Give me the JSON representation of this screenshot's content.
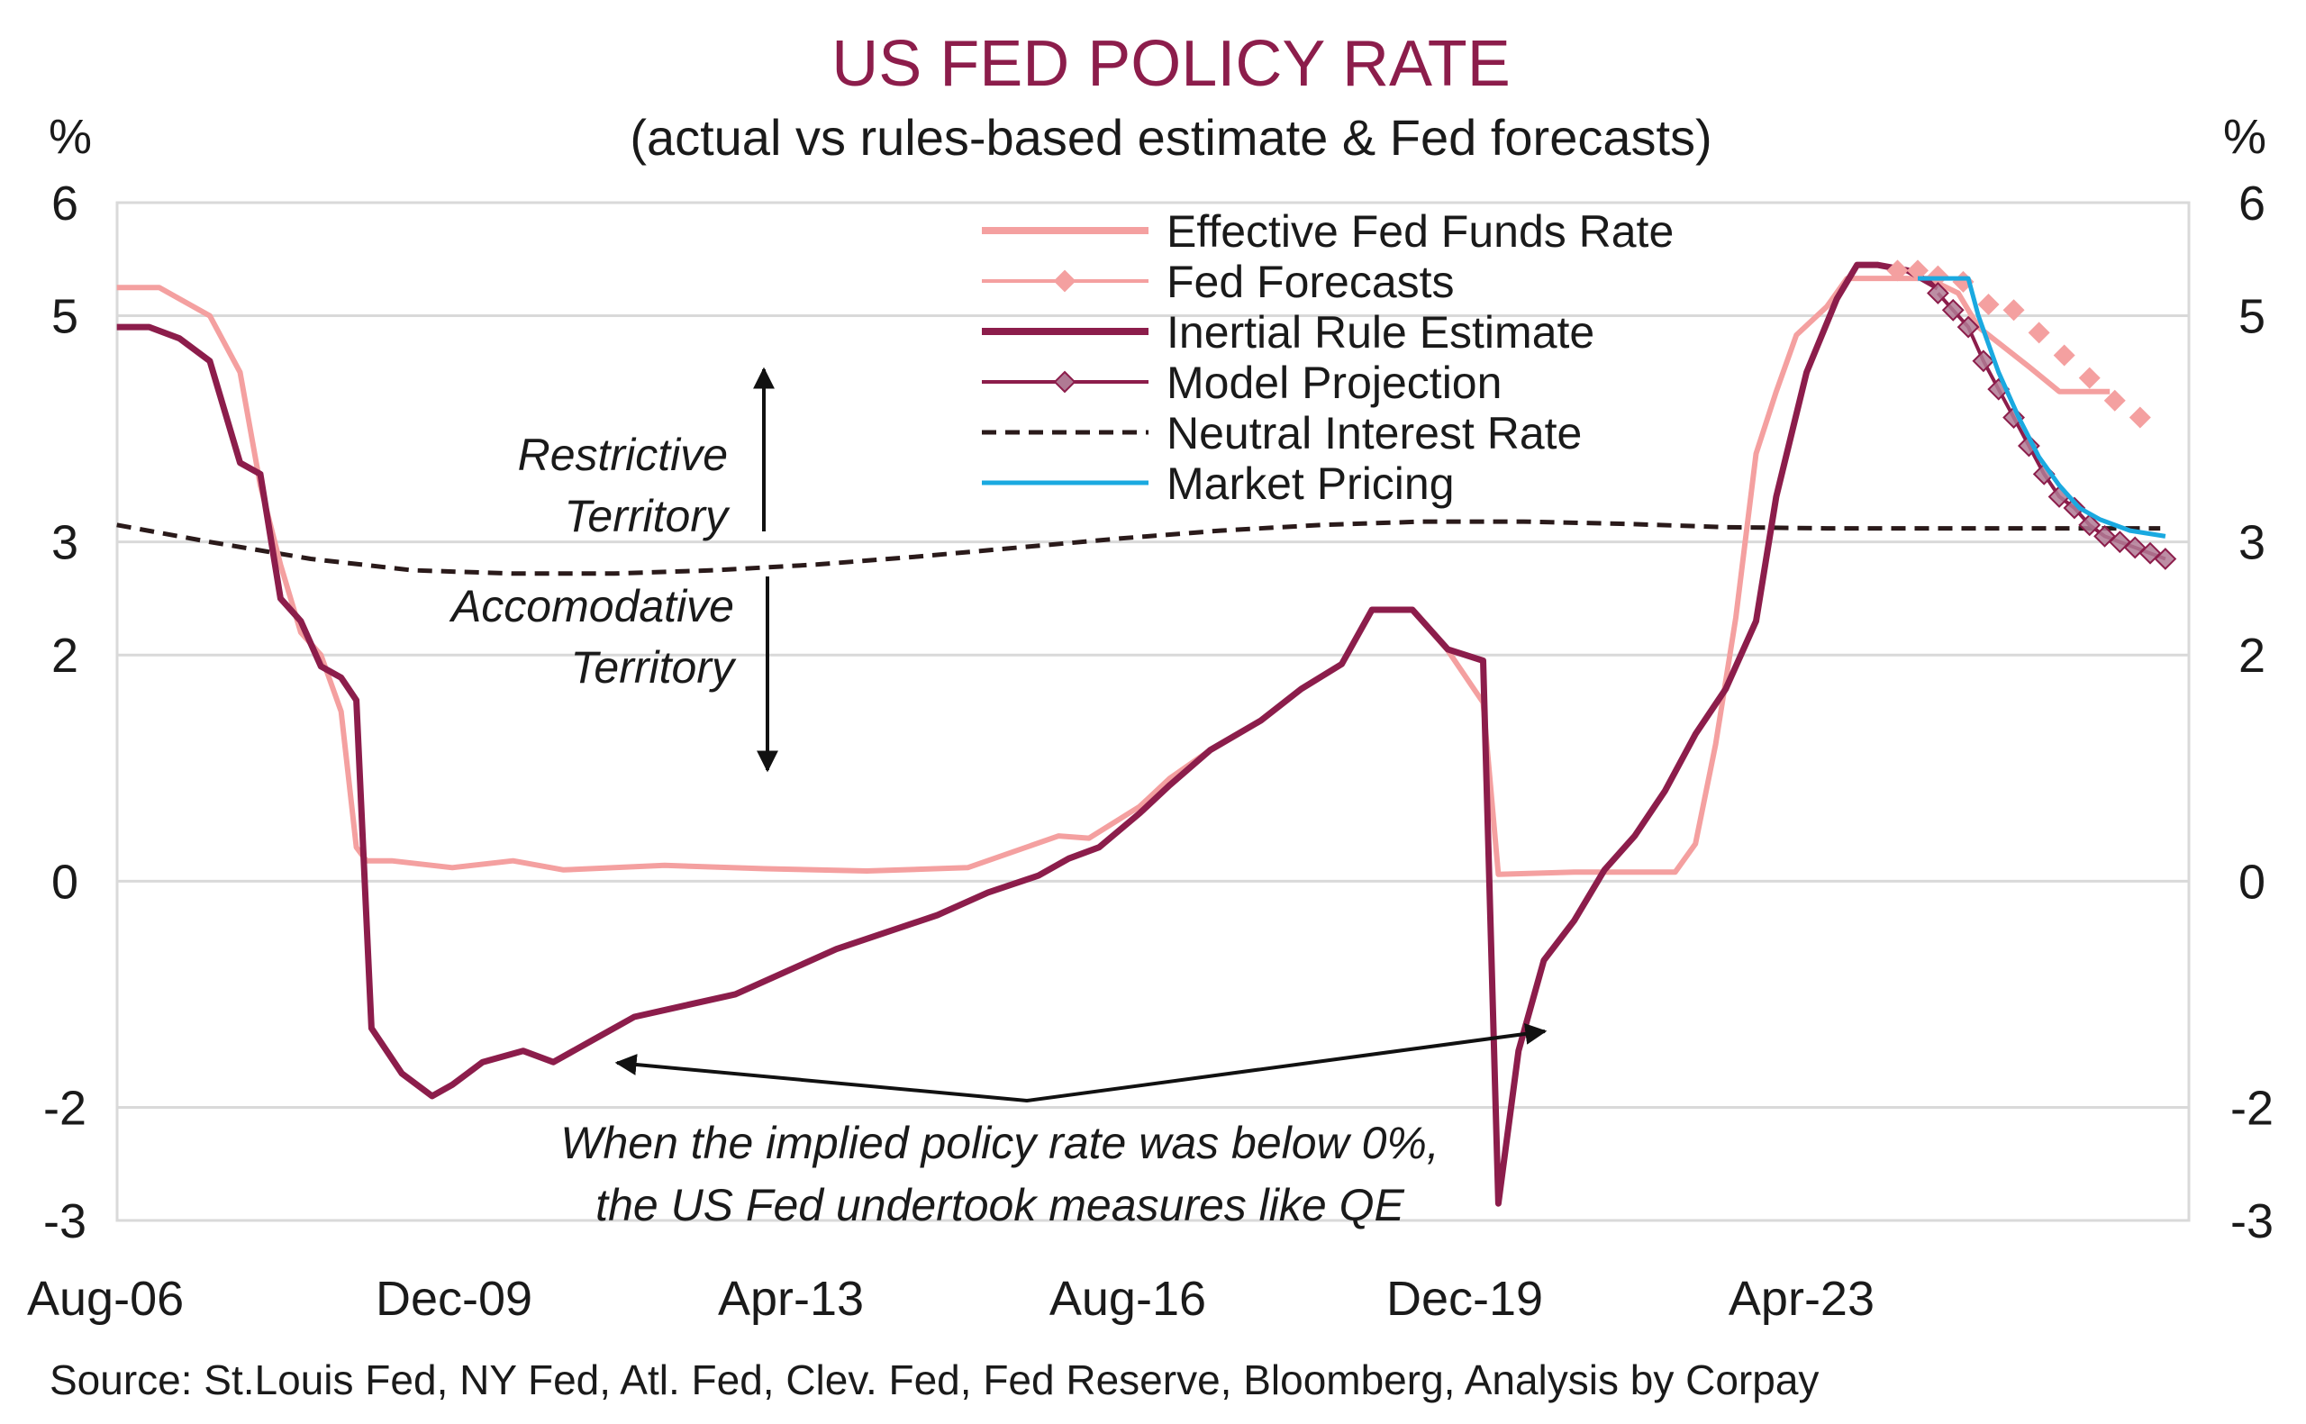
{
  "chart_data": {
    "type": "line",
    "title": "US FED POLICY RATE",
    "subtitle": "(actual vs rules-based estimate & Fed forecasts)",
    "ylabel_left": "%",
    "ylabel_right": "%",
    "ylim": [
      -3,
      6
    ],
    "yticks": [
      -3,
      -2,
      0,
      2,
      3,
      5,
      6
    ],
    "xlim": [
      2006.583,
      2027.083
    ],
    "xticks": [
      {
        "x": 2006.583,
        "label": "Aug-06"
      },
      {
        "x": 2009.917,
        "label": "Dec-09"
      },
      {
        "x": 2013.25,
        "label": "Apr-13"
      },
      {
        "x": 2016.583,
        "label": "Aug-16"
      },
      {
        "x": 2019.917,
        "label": "Dec-19"
      },
      {
        "x": 2023.25,
        "label": "Apr-23"
      }
    ],
    "grid": true,
    "legend_position": "top-center",
    "colors": {
      "effr": "#f4a0a0",
      "fed_forecasts": "#f4a0a0",
      "inertial": "#8c1d4b",
      "model_projection": "#8c1d4b",
      "neutral": "#2a1a1a",
      "market": "#1aa9e0",
      "grid": "#d9d9d9",
      "title": "#8c1d4b"
    },
    "series": [
      {
        "name": "Effective Fed Funds Rate",
        "style": "line",
        "x": [
          2006.58,
          2007.0,
          2007.5,
          2007.8,
          2008.0,
          2008.2,
          2008.4,
          2008.6,
          2008.8,
          2008.95,
          2009.05,
          2009.3,
          2009.9,
          2010.5,
          2011.0,
          2012.0,
          2013.0,
          2014.0,
          2015.0,
          2015.9,
          2016.2,
          2016.7,
          2017.0,
          2017.4,
          2017.9,
          2018.3,
          2018.7,
          2019.0,
          2019.4,
          2019.75,
          2020.1,
          2020.25,
          2021.0,
          2022.0,
          2022.2,
          2022.4,
          2022.6,
          2022.8,
          2023.0,
          2023.2,
          2023.5,
          2023.7,
          2024.0,
          2024.5,
          2024.8,
          2025.0,
          2025.5,
          2025.8,
          2026.0,
          2026.3
        ],
        "y": [
          5.25,
          5.25,
          5.0,
          4.5,
          3.5,
          2.8,
          2.2,
          2.0,
          1.5,
          0.3,
          0.18,
          0.18,
          0.12,
          0.18,
          0.1,
          0.14,
          0.11,
          0.09,
          0.12,
          0.4,
          0.38,
          0.66,
          0.91,
          1.16,
          1.42,
          1.7,
          1.92,
          2.4,
          2.4,
          2.04,
          1.58,
          0.06,
          0.08,
          0.08,
          0.33,
          1.21,
          2.33,
          3.78,
          4.33,
          4.83,
          5.08,
          5.33,
          5.33,
          5.33,
          5.2,
          4.9,
          4.55,
          4.33,
          4.33,
          4.33
        ]
      },
      {
        "name": "Fed Forecasts",
        "style": "markers",
        "x": [
          2024.2,
          2024.4,
          2024.6,
          2024.85,
          2025.1,
          2025.35,
          2025.6,
          2025.85,
          2026.1,
          2026.35,
          2026.6
        ],
        "y": [
          5.4,
          5.4,
          5.35,
          5.3,
          5.1,
          5.05,
          4.85,
          4.65,
          4.45,
          4.25,
          4.1
        ]
      },
      {
        "name": "Inertial Rule Estimate",
        "style": "thick-line",
        "x": [
          2006.58,
          2006.9,
          2007.2,
          2007.5,
          2007.8,
          2008.0,
          2008.2,
          2008.4,
          2008.6,
          2008.8,
          2008.95,
          2009.1,
          2009.4,
          2009.7,
          2009.9,
          2010.2,
          2010.6,
          2010.9,
          2011.3,
          2011.7,
          2012.2,
          2012.7,
          2013.2,
          2013.7,
          2014.2,
          2014.7,
          2015.2,
          2015.7,
          2016.0,
          2016.3,
          2016.7,
          2017.0,
          2017.4,
          2017.9,
          2018.3,
          2018.7,
          2019.0,
          2019.4,
          2019.75,
          2020.1,
          2020.25,
          2020.45,
          2020.7,
          2021.0,
          2021.3,
          2021.6,
          2021.9,
          2022.2,
          2022.5,
          2022.8,
          2023.0,
          2023.3,
          2023.6,
          2023.8,
          2024.0,
          2024.3,
          2024.6
        ],
        "y": [
          4.9,
          4.9,
          4.8,
          4.6,
          3.7,
          3.6,
          2.5,
          2.3,
          1.9,
          1.8,
          1.6,
          -1.3,
          -1.7,
          -1.9,
          -1.8,
          -1.6,
          -1.5,
          -1.6,
          -1.4,
          -1.2,
          -1.1,
          -1.0,
          -0.8,
          -0.6,
          -0.45,
          -0.3,
          -0.1,
          0.05,
          0.2,
          0.3,
          0.6,
          0.85,
          1.16,
          1.42,
          1.7,
          1.92,
          2.4,
          2.4,
          2.05,
          1.95,
          -2.85,
          -1.5,
          -0.7,
          -0.35,
          0.1,
          0.4,
          0.8,
          1.3,
          1.7,
          2.3,
          3.4,
          4.5,
          5.15,
          5.45,
          5.45,
          5.4,
          5.25
        ]
      },
      {
        "name": "Model Projection",
        "style": "markers",
        "x": [
          2024.6,
          2024.75,
          2024.9,
          2025.05,
          2025.2,
          2025.35,
          2025.5,
          2025.65,
          2025.8,
          2025.95,
          2026.1,
          2026.25,
          2026.4,
          2026.55,
          2026.7,
          2026.85
        ],
        "y": [
          5.2,
          5.05,
          4.9,
          4.6,
          4.35,
          4.1,
          3.85,
          3.6,
          3.4,
          3.3,
          3.15,
          3.05,
          3.0,
          2.95,
          2.9,
          2.85
        ]
      },
      {
        "name": "Neutral Interest Rate",
        "style": "dashed-line",
        "x": [
          2006.58,
          2007.5,
          2008.5,
          2009.5,
          2010.5,
          2011.5,
          2012.5,
          2013.5,
          2014.5,
          2015.5,
          2016.5,
          2017.5,
          2018.5,
          2019.5,
          2020.5,
          2021.5,
          2022.5,
          2023.5,
          2024.5,
          2025.5,
          2026.8
        ],
        "y": [
          3.15,
          3.0,
          2.85,
          2.75,
          2.72,
          2.72,
          2.75,
          2.8,
          2.87,
          2.95,
          3.03,
          3.1,
          3.15,
          3.18,
          3.18,
          3.16,
          3.13,
          3.12,
          3.12,
          3.12,
          3.12
        ]
      },
      {
        "name": "Market Pricing",
        "style": "line",
        "x": [
          2024.4,
          2024.9,
          2025.0,
          2025.2,
          2025.4,
          2025.6,
          2025.8,
          2026.0,
          2026.2,
          2026.5,
          2026.85
        ],
        "y": [
          5.33,
          5.33,
          5.0,
          4.5,
          4.1,
          3.75,
          3.5,
          3.3,
          3.2,
          3.1,
          3.05
        ]
      }
    ],
    "annotations": {
      "restrictive_line1": "Restrictive",
      "restrictive_line2": "Territory",
      "accomodative_line1": "Accomodative",
      "accomodative_line2": "Territory",
      "qe_line1": "When the implied policy rate was below 0%,",
      "qe_line2": "the US Fed undertook measures like QE"
    },
    "source": "Source: St.Louis Fed, NY Fed, Atl. Fed, Clev. Fed, Fed Reserve, Bloomberg, Analysis by Corpay"
  }
}
